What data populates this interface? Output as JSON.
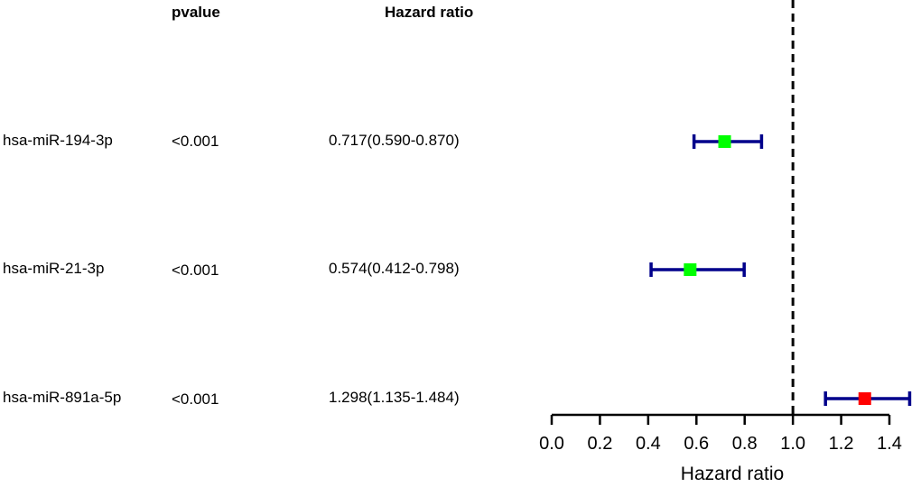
{
  "table": {
    "pvalue_header": "pvalue",
    "hr_header": "Hazard ratio",
    "rows": [
      {
        "gene": "hsa-miR-194-3p",
        "pvalue": "<0.001",
        "hr_text": "0.717(0.590-0.870)"
      },
      {
        "gene": "hsa-miR-21-3p",
        "pvalue": "<0.001",
        "hr_text": "0.574(0.412-0.798)"
      },
      {
        "gene": "hsa-miR-891a-5p",
        "pvalue": "<0.001",
        "hr_text": "1.298(1.135-1.484)"
      }
    ]
  },
  "chart_data": {
    "type": "forest",
    "xlabel": "Hazard ratio",
    "xlim": [
      0.0,
      1.4
    ],
    "ticks": [
      "0.0",
      "0.2",
      "0.4",
      "0.6",
      "0.8",
      "1.0",
      "1.2",
      "1.4"
    ],
    "reference_line": 1.0,
    "whisker_color": "#00008b",
    "reference_line_color": "#000000",
    "points": [
      {
        "label": "hsa-miR-194-3p",
        "hr": 0.717,
        "lower": 0.59,
        "upper": 0.87,
        "color": "#00ff00"
      },
      {
        "label": "hsa-miR-21-3p",
        "hr": 0.574,
        "lower": 0.412,
        "upper": 0.798,
        "color": "#00ff00"
      },
      {
        "label": "hsa-miR-891a-5p",
        "hr": 1.298,
        "lower": 1.135,
        "upper": 1.484,
        "color": "#ff0000"
      }
    ]
  }
}
